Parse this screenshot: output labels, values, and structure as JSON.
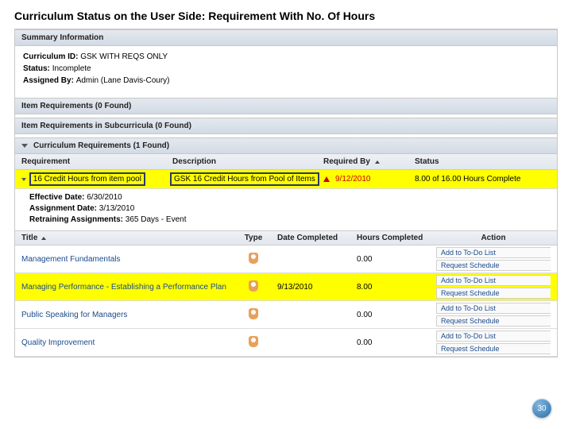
{
  "page": {
    "title": "Curriculum Status on the User Side: Requirement With No. Of Hours",
    "number": "30"
  },
  "summary": {
    "header": "Summary Information",
    "curriculum_id_label": "Curriculum ID:",
    "curriculum_id": "GSK WITH REQS ONLY",
    "status_label": "Status:",
    "status": "Incomplete",
    "assigned_by_label": "Assigned By:",
    "assigned_by": "Admin (Lane Davis-Coury)"
  },
  "item_reqs": {
    "header": "Item Requirements (0 Found)"
  },
  "sub_reqs": {
    "header": "Item Requirements in Subcurricula (0 Found)"
  },
  "curr_reqs": {
    "header": "Curriculum Requirements (1 Found)",
    "columns": {
      "req": "Requirement",
      "desc": "Description",
      "reqby": "Required By",
      "status": "Status"
    },
    "row": {
      "req": "16 Credit Hours from item pool",
      "desc": "GSK 16 Credit Hours from Pool of Items",
      "reqby": "9/12/2010",
      "status": "8.00 of 16.00 Hours Complete"
    },
    "details": {
      "eff_label": "Effective Date:",
      "eff": "6/30/2010",
      "asg_label": "Assignment Date:",
      "asg": "3/13/2010",
      "ret_label": "Retraining Assignments:",
      "ret": "365 Days - Event"
    }
  },
  "items": {
    "columns": {
      "title": "Title",
      "type": "Type",
      "date": "Date Completed",
      "hours": "Hours Completed",
      "action": "Action"
    },
    "action_labels": {
      "add": "Add to To-Do List",
      "sched": "Request Schedule"
    },
    "rows": [
      {
        "title": "Management Fundamentals",
        "date": "",
        "hours": "0.00",
        "highlight": false
      },
      {
        "title": "Managing Performance - Establishing a Performance Plan",
        "date": "9/13/2010",
        "hours": "8.00",
        "highlight": true
      },
      {
        "title": "Public Speaking for Managers",
        "date": "",
        "hours": "0.00",
        "highlight": false
      },
      {
        "title": "Quality Improvement",
        "date": "",
        "hours": "0.00",
        "highlight": false
      }
    ]
  },
  "colors": {
    "highlight": "#ffff00",
    "link": "#1a4b8c",
    "header_grad_top": "#e4e9ef",
    "header_grad_bot": "#d2dae4",
    "warn": "#c00"
  }
}
